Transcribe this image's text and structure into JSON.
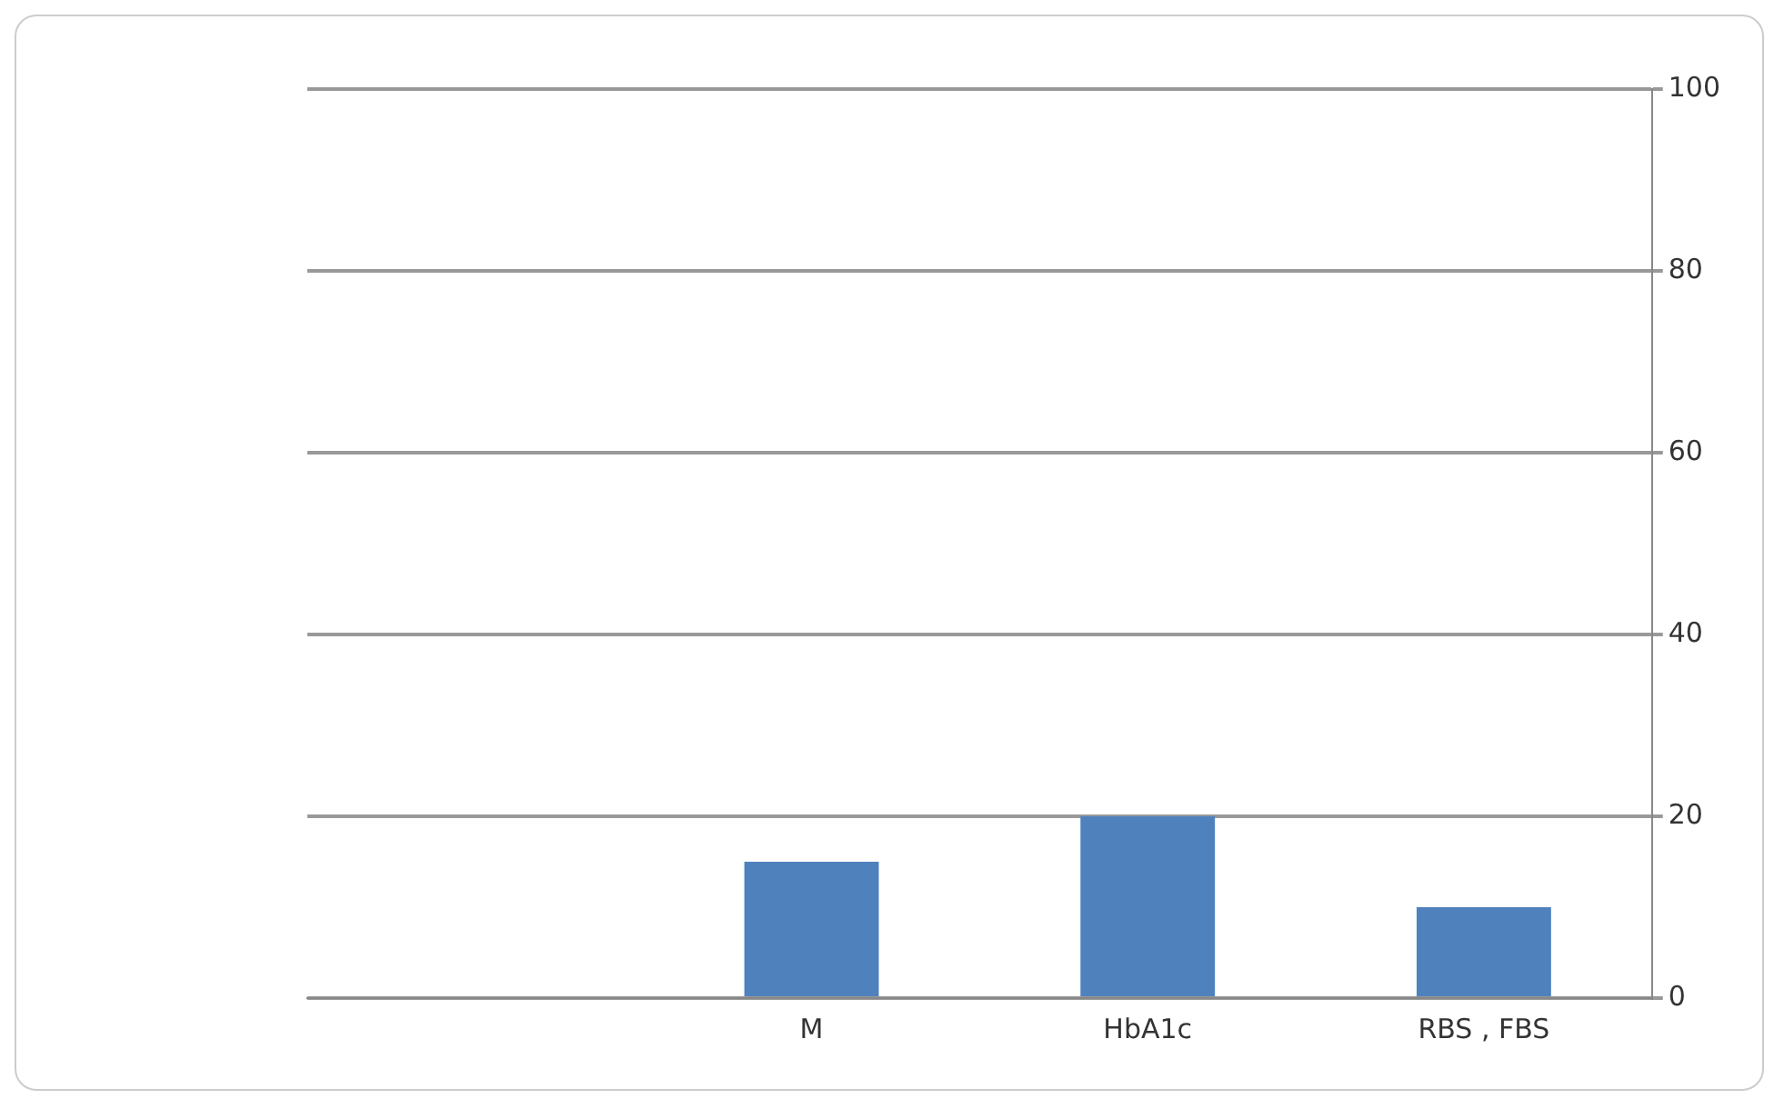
{
  "chart_data": {
    "type": "bar",
    "categories": [
      null,
      "M",
      "HbA1c",
      "RBS , FBS"
    ],
    "values": [
      null,
      15,
      20,
      10
    ],
    "color": "#4f81bd",
    "ylim": [
      0,
      100
    ],
    "yticks": [
      0,
      20,
      40,
      60,
      80,
      100
    ],
    "grid": "y",
    "legend": false
  }
}
